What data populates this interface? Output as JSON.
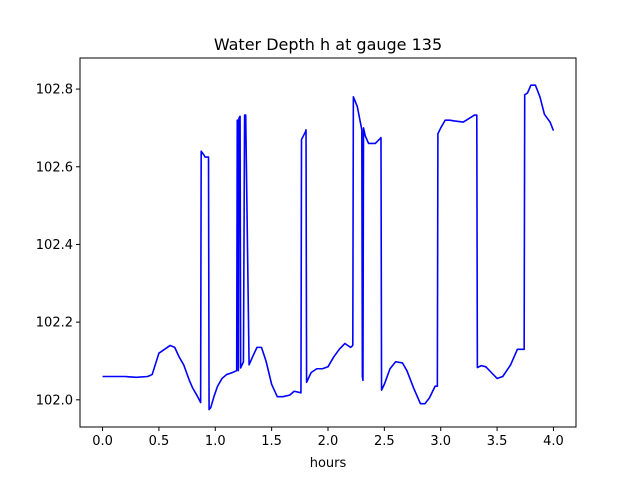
{
  "chart_data": {
    "type": "line",
    "title": "Water Depth h at gauge 135",
    "xlabel": "hours",
    "ylabel": "",
    "xlim": [
      -0.2,
      4.2
    ],
    "ylim": [
      101.93,
      102.88
    ],
    "xticks": [
      0.0,
      0.5,
      1.0,
      1.5,
      2.0,
      2.5,
      3.0,
      3.5,
      4.0
    ],
    "xtick_labels": [
      "0.0",
      "0.5",
      "1.0",
      "1.5",
      "2.0",
      "2.5",
      "3.0",
      "3.5",
      "4.0"
    ],
    "yticks": [
      102.0,
      102.2,
      102.4,
      102.6,
      102.8
    ],
    "ytick_labels": [
      "102.0",
      "102.2",
      "102.4",
      "102.6",
      "102.8"
    ],
    "grid": false,
    "legend": "none",
    "series": [
      {
        "color": "#0000ff",
        "x": [
          0.0,
          0.1,
          0.2,
          0.3,
          0.4,
          0.44,
          0.5,
          0.55,
          0.6,
          0.64,
          0.68,
          0.72,
          0.77,
          0.8,
          0.84,
          0.87,
          0.875,
          0.9,
          0.91,
          0.94,
          0.945,
          0.96,
          0.99,
          1.02,
          1.06,
          1.1,
          1.15,
          1.19,
          1.195,
          1.2,
          1.205,
          1.21,
          1.22,
          1.225,
          1.25,
          1.26,
          1.27,
          1.3,
          1.33,
          1.37,
          1.41,
          1.45,
          1.5,
          1.55,
          1.6,
          1.66,
          1.7,
          1.76,
          1.765,
          1.8,
          1.805,
          1.81,
          1.85,
          1.9,
          1.95,
          2.0,
          2.05,
          2.1,
          2.15,
          2.2,
          2.22,
          2.225,
          2.26,
          2.29,
          2.3,
          2.305,
          2.31,
          2.315,
          2.33,
          2.36,
          2.42,
          2.47,
          2.475,
          2.5,
          2.55,
          2.6,
          2.66,
          2.7,
          2.76,
          2.82,
          2.86,
          2.9,
          2.95,
          2.97,
          2.975,
          3.0,
          3.04,
          3.08,
          3.12,
          3.2,
          3.3,
          3.32,
          3.325,
          3.36,
          3.4,
          3.45,
          3.5,
          3.55,
          3.62,
          3.68,
          3.74,
          3.745,
          3.77,
          3.8,
          3.84,
          3.88,
          3.92,
          3.97,
          4.0
        ],
        "values": [
          102.06,
          102.06,
          102.06,
          102.058,
          102.06,
          102.065,
          102.12,
          102.13,
          102.14,
          102.135,
          102.11,
          102.09,
          102.05,
          102.03,
          102.01,
          101.993,
          102.64,
          102.63,
          102.625,
          102.625,
          101.975,
          101.98,
          102.01,
          102.035,
          102.055,
          102.065,
          102.07,
          102.075,
          102.72,
          102.72,
          102.075,
          102.725,
          102.73,
          102.082,
          102.098,
          102.733,
          102.733,
          102.09,
          102.11,
          102.135,
          102.135,
          102.1,
          102.04,
          102.008,
          102.008,
          102.012,
          102.022,
          102.018,
          102.67,
          102.69,
          102.695,
          102.045,
          102.07,
          102.08,
          102.08,
          102.085,
          102.11,
          102.13,
          102.145,
          102.135,
          102.14,
          102.78,
          102.755,
          102.71,
          102.695,
          102.06,
          102.05,
          102.7,
          102.68,
          102.66,
          102.66,
          102.675,
          102.025,
          102.04,
          102.08,
          102.098,
          102.095,
          102.075,
          102.03,
          101.99,
          101.99,
          102.005,
          102.035,
          102.035,
          102.685,
          102.7,
          102.72,
          102.72,
          102.718,
          102.715,
          102.733,
          102.733,
          102.083,
          102.088,
          102.085,
          102.07,
          102.055,
          102.06,
          102.09,
          102.13,
          102.13,
          102.785,
          102.79,
          102.81,
          102.81,
          102.78,
          102.735,
          102.715,
          102.693
        ]
      }
    ]
  }
}
